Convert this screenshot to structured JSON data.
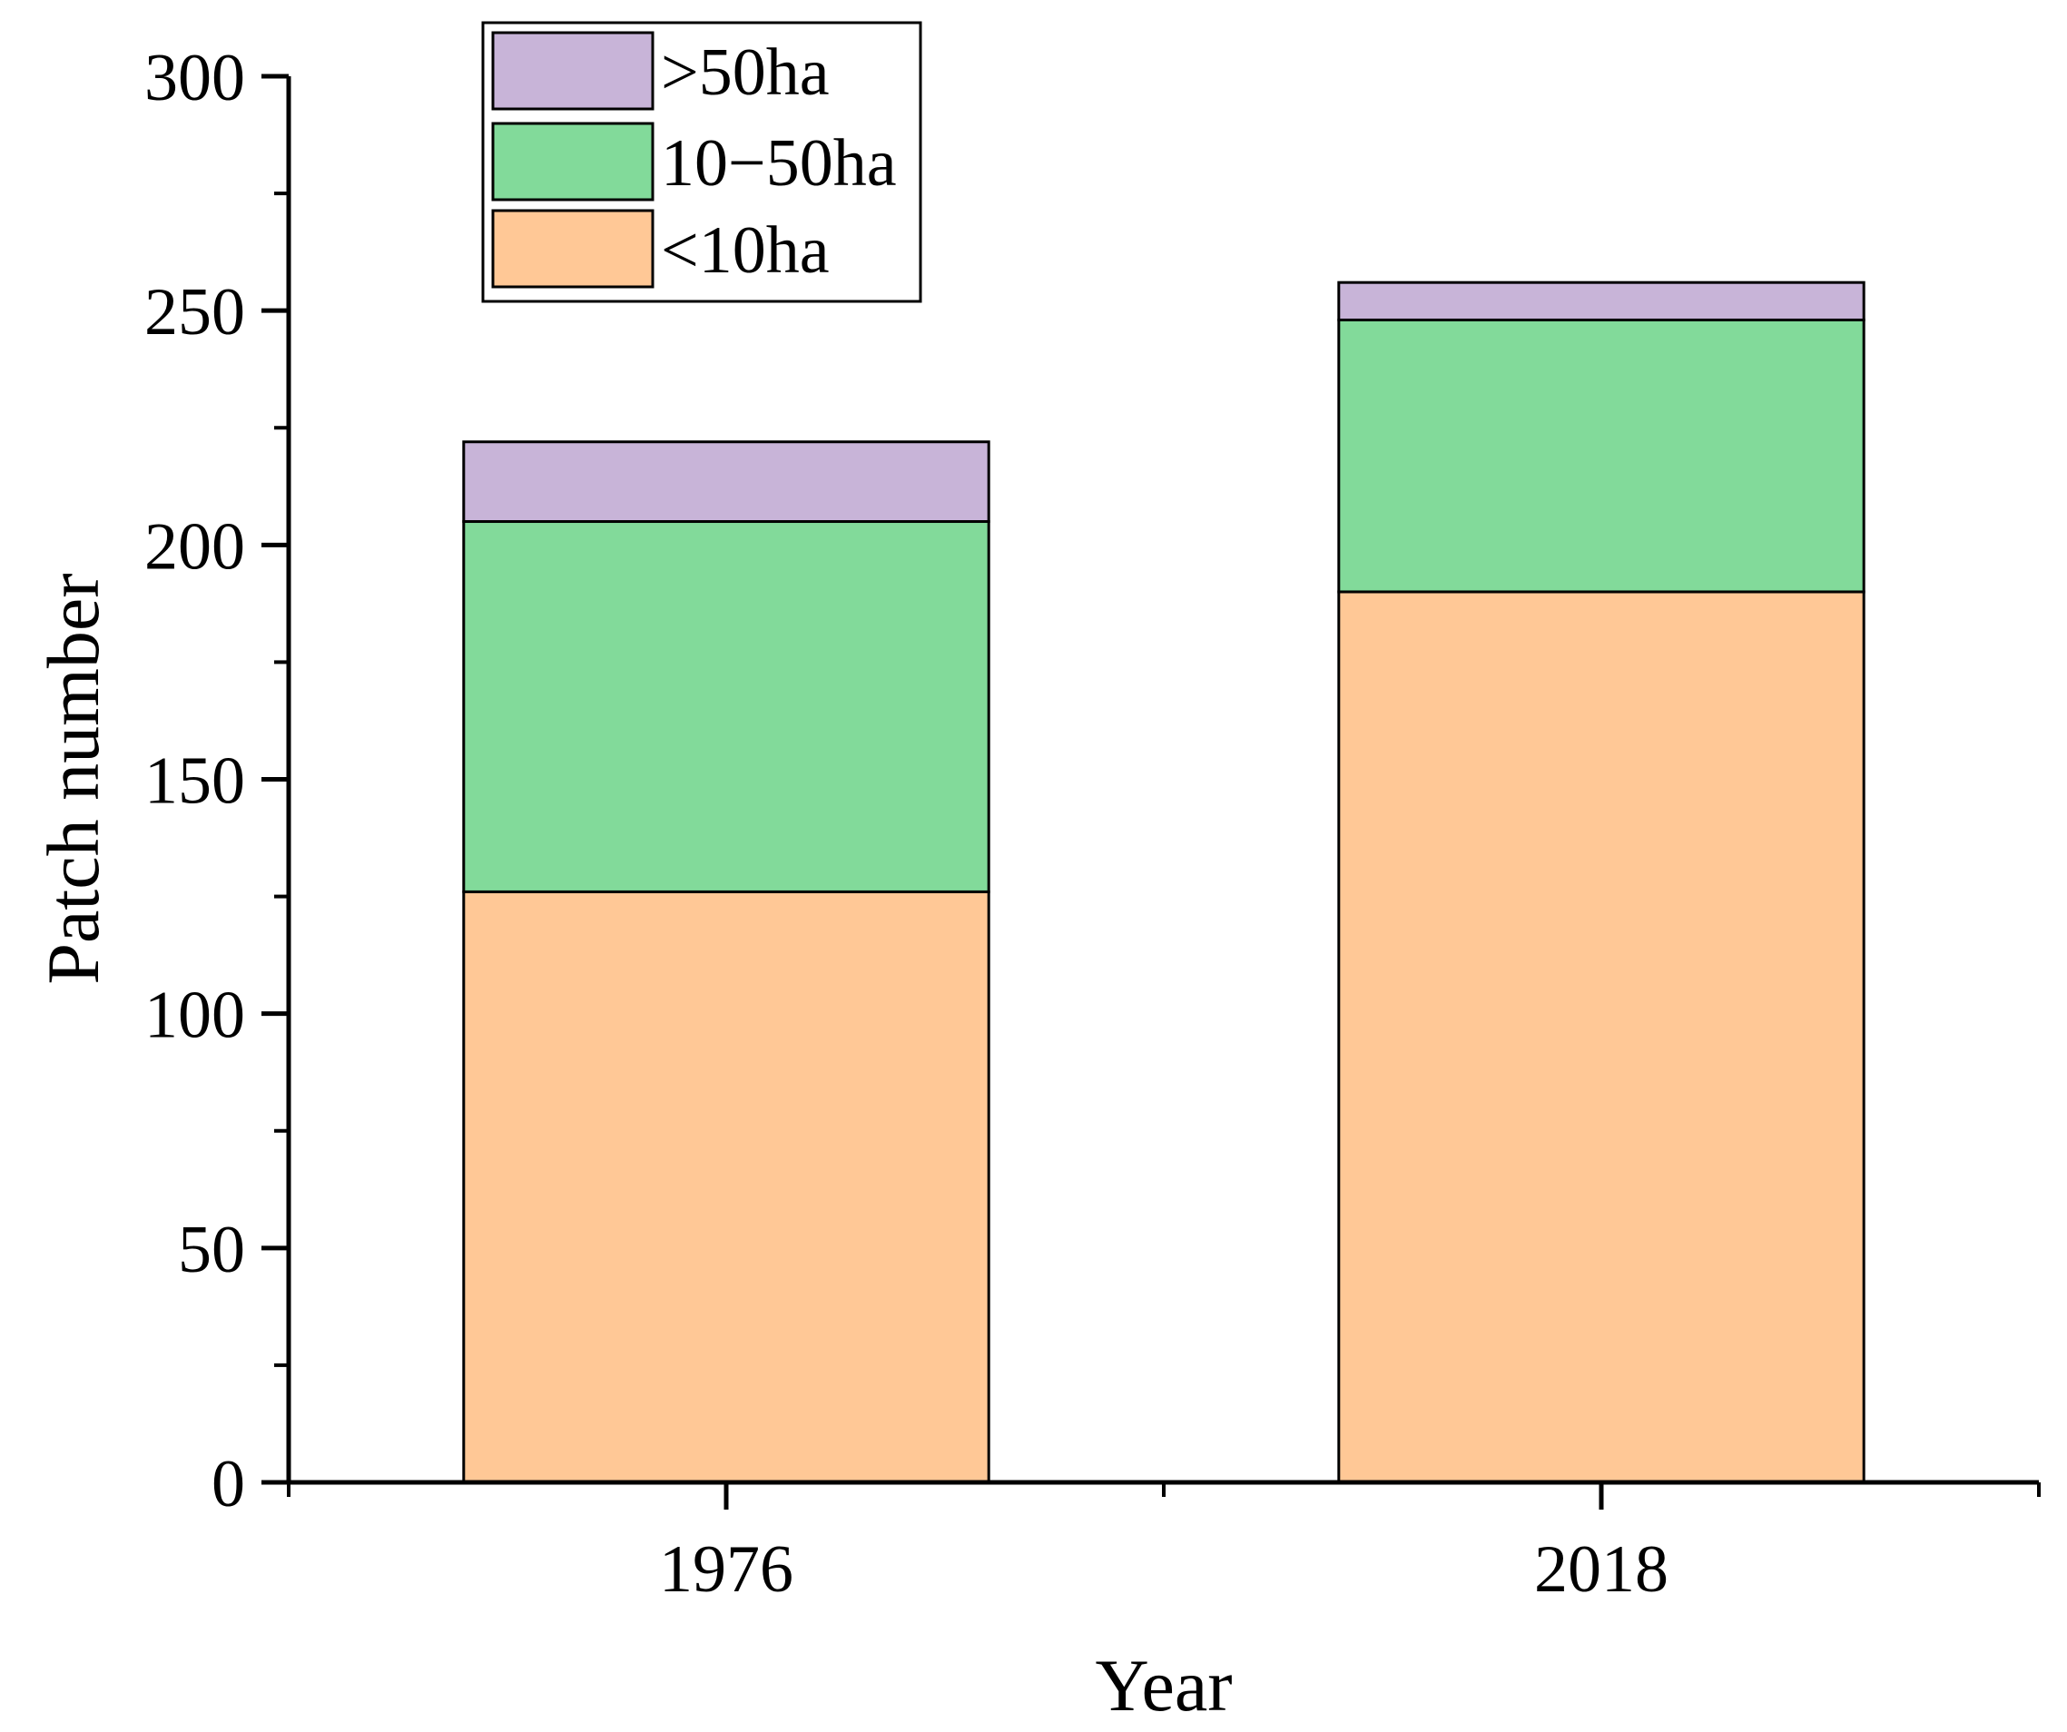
{
  "chart_data": {
    "type": "bar",
    "stacked": true,
    "title": "",
    "xlabel": "Year",
    "ylabel": "Patch number",
    "categories": [
      "1976",
      "2018"
    ],
    "ylim": [
      0,
      300
    ],
    "yticks": [
      0,
      50,
      100,
      150,
      200,
      250,
      300
    ],
    "grid": false,
    "legend_position": "top-left",
    "series": [
      {
        "name": "<10ha",
        "values": [
          126,
          190
        ],
        "color": "#FFC896"
      },
      {
        "name": "10−50ha",
        "values": [
          79,
          58
        ],
        "color": "#82DA9A"
      },
      {
        "name": ">50ha",
        "values": [
          17,
          8
        ],
        "color": "#C8B4D8"
      }
    ],
    "legend_order": [
      ">50ha",
      "10−50ha",
      "<10ha"
    ]
  }
}
